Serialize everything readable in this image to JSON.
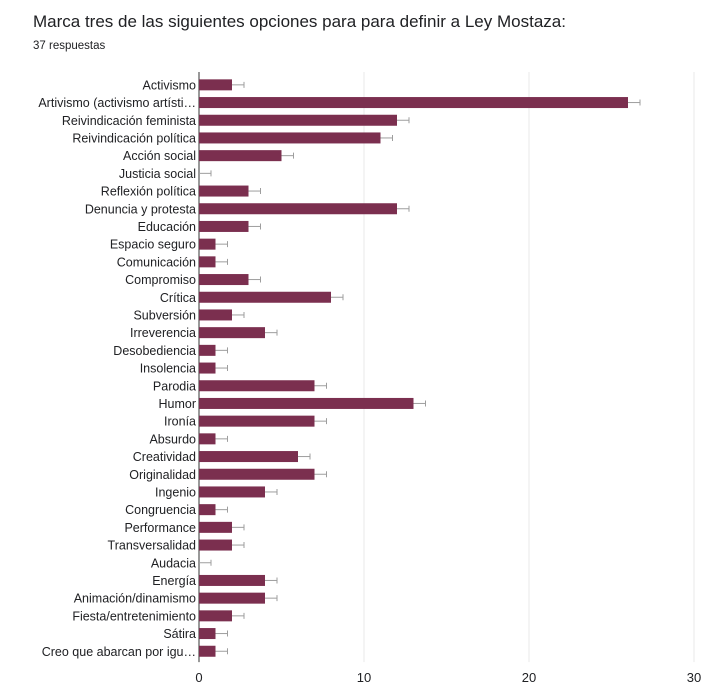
{
  "question": {
    "title": "Marca tres de las siguientes opciones para para definir a Ley Mostaza:",
    "responses": "37 respuestas"
  },
  "colors": {
    "bar": "#7b2f4f",
    "grid": "#e8e8e8",
    "error_bar": "#9e9e9e",
    "text": "#202124"
  },
  "chart_data": {
    "type": "bar",
    "orientation": "horizontal",
    "title": "Marca tres de las siguientes opciones para para definir a Ley Mostaza:",
    "subtitle": "37 respuestas",
    "categories": [
      "Activismo",
      "Artivismo (activismo artísti…",
      "Reivindicación feminista",
      "Reivindicación política",
      "Acción social",
      "Justicia social",
      "Reflexión política",
      "Denuncia y protesta",
      "Educación",
      "Espacio seguro",
      "Comunicación",
      "Compromiso",
      "Crítica",
      "Subversión",
      "Irreverencia",
      "Desobediencia",
      "Insolencia",
      "Parodia",
      "Humor",
      "Ironía",
      "Absurdo",
      "Creatividad",
      "Originalidad",
      "Ingenio",
      "Congruencia",
      "Performance",
      "Transversalidad",
      "Audacia",
      "Energía",
      "Animación/dinamismo",
      "Fiesta/entretenimiento",
      "Sátira",
      "Creo que abarcan por igu…"
    ],
    "values": [
      2,
      26,
      12,
      11,
      5,
      0,
      3,
      12,
      3,
      1,
      1,
      3,
      8,
      2,
      4,
      1,
      1,
      7,
      13,
      7,
      1,
      6,
      7,
      4,
      1,
      2,
      2,
      0,
      4,
      4,
      2,
      1,
      1
    ],
    "xlim": [
      0,
      30
    ],
    "xticks": [
      0,
      10,
      20,
      30
    ],
    "grid": true,
    "legend": "none"
  }
}
